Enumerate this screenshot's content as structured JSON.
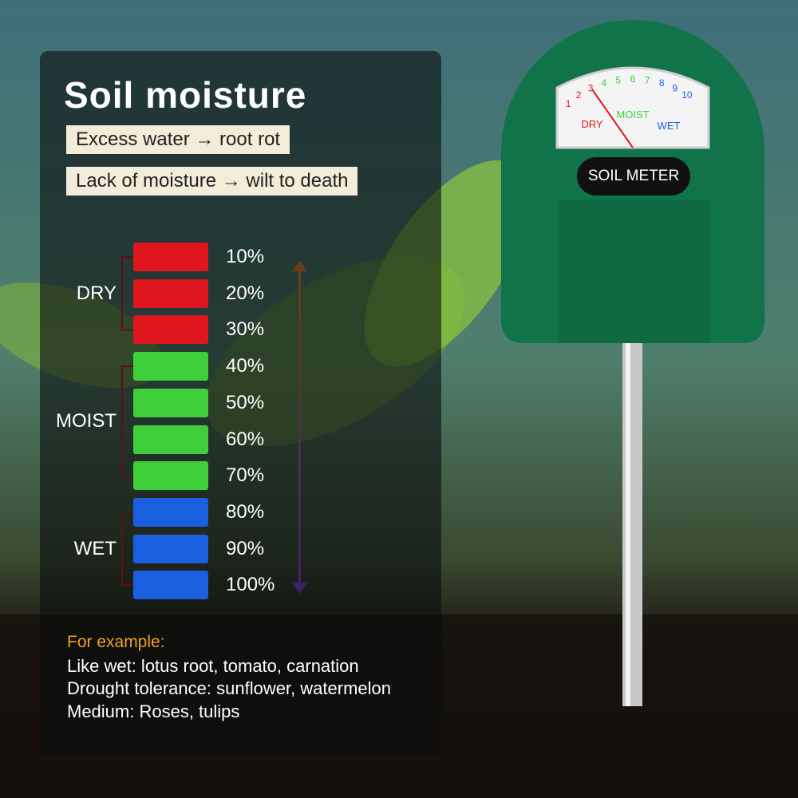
{
  "header": {
    "title": "Soil moisture",
    "notes": [
      "Excess water → root rot",
      "Lack of moisture → wilt to death"
    ]
  },
  "scale": {
    "levels": [
      {
        "label": "10%",
        "color": "#e0161e"
      },
      {
        "label": "20%",
        "color": "#e0161e"
      },
      {
        "label": "30%",
        "color": "#e0161e"
      },
      {
        "label": "40%",
        "color": "#3fcf3a"
      },
      {
        "label": "50%",
        "color": "#3fcf3a"
      },
      {
        "label": "60%",
        "color": "#3fcf3a"
      },
      {
        "label": "70%",
        "color": "#3fcf3a"
      },
      {
        "label": "80%",
        "color": "#1a5fe0"
      },
      {
        "label": "90%",
        "color": "#1a5fe0"
      },
      {
        "label": "100%",
        "color": "#1a5fe0"
      }
    ],
    "groups": [
      {
        "label": "DRY",
        "from": 0,
        "to": 2
      },
      {
        "label": "MOIST",
        "from": 3,
        "to": 6
      },
      {
        "label": "WET",
        "from": 7,
        "to": 9
      }
    ]
  },
  "examples": {
    "heading": "For example:",
    "lines": [
      "Like wet: lotus root, tomato, carnation",
      "Drought tolerance: sunflower, watermelon",
      "Medium: Roses, tulips"
    ]
  },
  "meter": {
    "brand": "SOIL METER",
    "dial_numbers": [
      "1",
      "2",
      "3",
      "4",
      "5",
      "6",
      "7",
      "8",
      "9",
      "10"
    ],
    "zones": [
      "DRY",
      "MOIST",
      "WET"
    ]
  }
}
